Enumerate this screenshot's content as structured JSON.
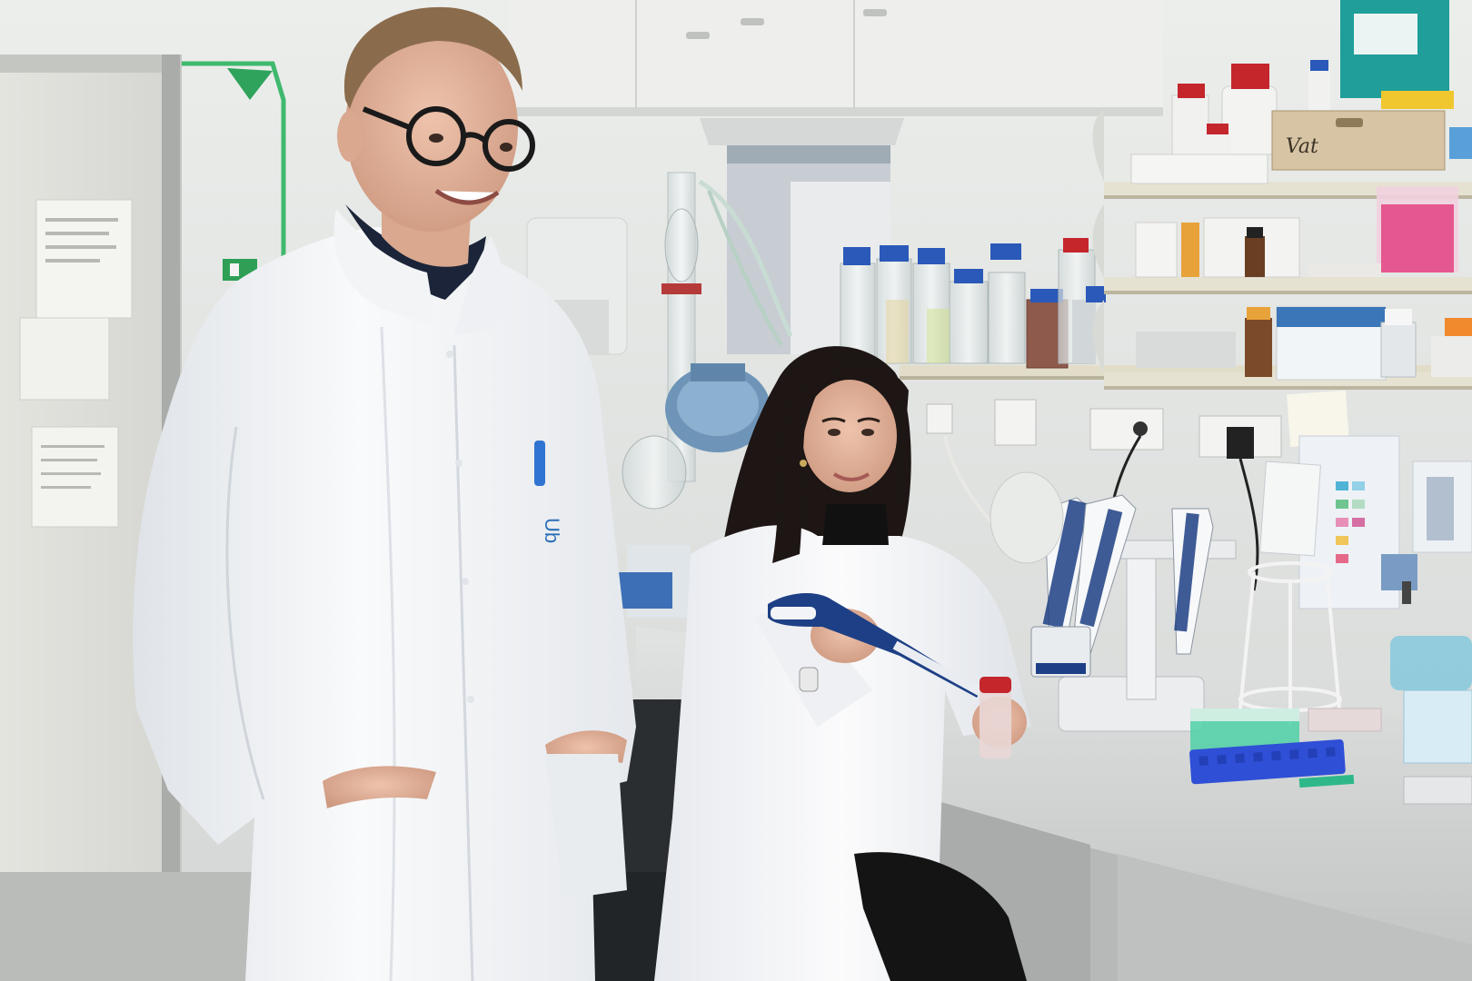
{
  "photo": {
    "label_drawer": "Vat",
    "label_coat": "Ub",
    "colors": {
      "wall": "#e3e5e3",
      "cabinet": "#ecedeb",
      "bench": "#d7d9d7",
      "shelf": "#e6e2d2",
      "coat": "#f6f7f8",
      "hair_woman": "#1d1614",
      "hair_man": "#8a6c4c",
      "skin": "#e2b59e",
      "pipette_blue": "#1d3f85",
      "cap_blue": "#2a59b9",
      "cap_red": "#c4262c",
      "rack_blue": "#2f4fd6",
      "box_teal": "#1f9e9a",
      "pink_tips": "#e5578f"
    },
    "subjects": [
      "man-standing",
      "woman-seated-with-pipette"
    ]
  }
}
